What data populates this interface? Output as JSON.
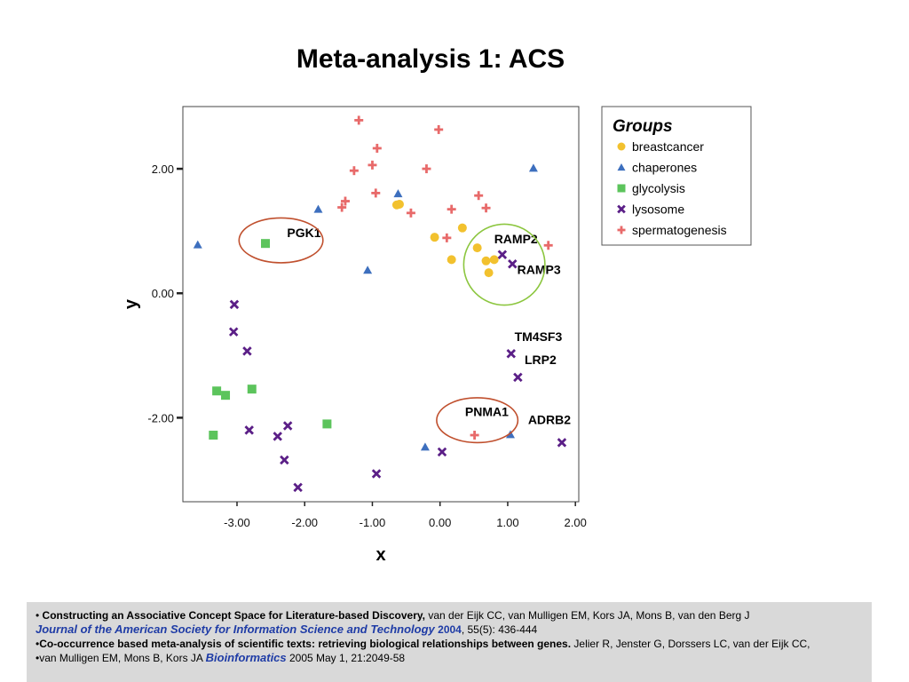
{
  "page": {
    "title": "Meta-analysis 1: ACS"
  },
  "chart_data": {
    "type": "scatter",
    "xlabel": "x",
    "ylabel": "y",
    "xlim": [
      -3.8,
      2.05
    ],
    "ylim": [
      -3.35,
      3.0
    ],
    "xticks": [
      -3.0,
      -2.0,
      -1.0,
      0.0,
      1.0,
      2.0
    ],
    "xtick_labels": [
      "-3.00",
      "-2.00",
      "-1.00",
      "0.00",
      "1.00",
      "2.00"
    ],
    "yticks": [
      2.0,
      0.0,
      -2.0
    ],
    "ytick_labels": [
      "2.00",
      "0.00",
      "-2.00"
    ],
    "legend": {
      "title": "Groups",
      "position": "top-right"
    },
    "series": [
      {
        "name": "breastcancer",
        "marker": "circle",
        "color": "#f2c12e",
        "points": [
          [
            -0.6,
            1.43
          ],
          [
            -0.64,
            1.42
          ],
          [
            -0.08,
            0.9
          ],
          [
            0.33,
            1.05
          ],
          [
            0.55,
            0.73
          ],
          [
            0.17,
            0.54
          ],
          [
            0.68,
            0.52
          ],
          [
            0.8,
            0.54
          ],
          [
            0.72,
            0.33
          ]
        ]
      },
      {
        "name": "chaperones",
        "marker": "triangle",
        "color": "#3d6fbe",
        "points": [
          [
            -3.58,
            0.78
          ],
          [
            -1.8,
            1.35
          ],
          [
            -0.62,
            1.6
          ],
          [
            1.38,
            2.01
          ],
          [
            -1.07,
            0.37
          ],
          [
            -0.22,
            -2.47
          ],
          [
            1.04,
            -2.27
          ]
        ]
      },
      {
        "name": "glycolysis",
        "marker": "square",
        "color": "#5cc45c",
        "points": [
          [
            -2.58,
            0.8
          ],
          [
            -3.3,
            -1.57
          ],
          [
            -3.17,
            -1.64
          ],
          [
            -2.78,
            -1.54
          ],
          [
            -3.35,
            -2.28
          ],
          [
            -1.67,
            -2.1
          ]
        ]
      },
      {
        "name": "lysosome",
        "marker": "x",
        "color": "#5b1f87",
        "points": [
          [
            -3.04,
            -0.18
          ],
          [
            -3.05,
            -0.62
          ],
          [
            -2.85,
            -0.93
          ],
          [
            -2.82,
            -2.2
          ],
          [
            -2.25,
            -2.13
          ],
          [
            -2.4,
            -2.3
          ],
          [
            -2.3,
            -2.68
          ],
          [
            -2.1,
            -3.12
          ],
          [
            -0.94,
            -2.9
          ],
          [
            0.03,
            -2.55
          ],
          [
            0.92,
            0.62
          ],
          [
            1.07,
            0.47
          ],
          [
            1.05,
            -0.97
          ],
          [
            1.15,
            -1.35
          ],
          [
            1.8,
            -2.4
          ]
        ]
      },
      {
        "name": "spermatogenesis",
        "marker": "plus",
        "color": "#e86a6a",
        "points": [
          [
            -1.2,
            2.78
          ],
          [
            -0.02,
            2.63
          ],
          [
            -0.93,
            2.33
          ],
          [
            -1.0,
            2.06
          ],
          [
            -1.27,
            1.97
          ],
          [
            -0.2,
            2.0
          ],
          [
            -0.95,
            1.61
          ],
          [
            0.57,
            1.57
          ],
          [
            -1.4,
            1.48
          ],
          [
            -1.45,
            1.38
          ],
          [
            0.17,
            1.35
          ],
          [
            0.68,
            1.37
          ],
          [
            -0.43,
            1.29
          ],
          [
            0.1,
            0.89
          ],
          [
            1.6,
            0.77
          ],
          [
            0.51,
            -2.28
          ]
        ]
      }
    ],
    "annotations": [
      {
        "label": "PGK1",
        "x": -2.26,
        "y": 0.9
      },
      {
        "label": "RAMP2",
        "x": 0.8,
        "y": 0.8
      },
      {
        "label": "RAMP3",
        "x": 1.14,
        "y": 0.31
      },
      {
        "label": "TM4SF3",
        "x": 1.1,
        "y": -0.77
      },
      {
        "label": "LRP2",
        "x": 1.25,
        "y": -1.14
      },
      {
        "label": "PNMA1",
        "x": 0.37,
        "y": -1.97
      },
      {
        "label": "ADRB2",
        "x": 1.3,
        "y": -2.1
      }
    ],
    "highlight_ellipses": [
      {
        "around": "PGK1",
        "cx": -2.35,
        "cy": 0.85,
        "rx": 0.62,
        "ry": 0.36,
        "color": "#c0502e"
      },
      {
        "around": "RAMP2/RAMP3",
        "cx": 0.95,
        "cy": 0.46,
        "rx": 0.6,
        "ry": 0.65,
        "color": "#8cc63f"
      },
      {
        "around": "PNMA1",
        "cx": 0.55,
        "cy": -2.04,
        "rx": 0.6,
        "ry": 0.36,
        "color": "#c0502e"
      }
    ]
  },
  "references": {
    "ref1": {
      "bullet": "•",
      "title": "Constructing an Associative Concept Space for Literature-based Discovery,",
      "authors": "van der Eijk CC, van Mulligen EM, Kors JA, Mons B, van den Berg J",
      "journal": "Journal of the American Society for Information Science and Technology",
      "year": "2004",
      "details": ", 55(5): 436-444"
    },
    "ref2": {
      "bullet": "•",
      "title": "Co-occurrence based meta-analysis of scientific texts: retrieving biological relationships between genes.",
      "authors_line1": "Jelier R, Jenster G, Dorssers LC, van der Eijk CC,",
      "authors_line2": "•van Mulligen EM, Mons B, Kors JA",
      "journal": "Bioinformatics",
      "details": "2005 May 1, 21:2049-58"
    }
  }
}
